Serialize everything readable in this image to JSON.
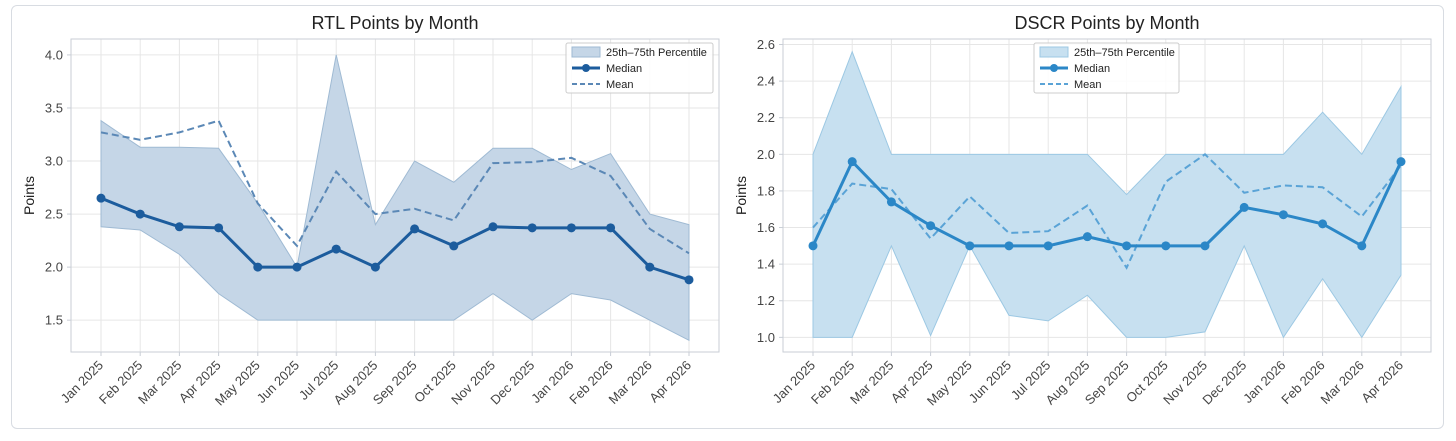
{
  "chart_data": [
    {
      "type": "line",
      "title": "RTL Points by Month",
      "xlabel": "",
      "ylabel": "Points",
      "ylim": [
        1.2,
        4.15
      ],
      "yticks": [
        1.5,
        2.0,
        2.5,
        3.0,
        3.5,
        4.0
      ],
      "ytick_labels": [
        "1.5",
        "2.0",
        "2.5",
        "3.0",
        "3.5",
        "4.0"
      ],
      "grid": true,
      "legend_position": "top-right",
      "categories": [
        "Jan 2025",
        "Feb 2025",
        "Mar 2025",
        "Apr 2025",
        "May 2025",
        "Jun 2025",
        "Jul 2025",
        "Aug 2025",
        "Sep 2025",
        "Oct 2025",
        "Nov 2025",
        "Dec 2025",
        "Jan 2026",
        "Feb 2026",
        "Mar 2026",
        "Apr 2026"
      ],
      "band": {
        "name": "25th–75th Percentile",
        "lower": [
          2.38,
          2.35,
          2.12,
          1.75,
          1.5,
          1.5,
          1.5,
          1.5,
          1.5,
          1.5,
          1.75,
          1.5,
          1.75,
          1.69,
          1.5,
          1.31
        ],
        "upper": [
          3.38,
          3.13,
          3.13,
          3.12,
          2.6,
          2.0,
          4.0,
          2.4,
          3.0,
          2.8,
          3.12,
          3.12,
          2.92,
          3.07,
          2.5,
          2.4
        ]
      },
      "series": [
        {
          "name": "Median",
          "style": "solid-markers",
          "values": [
            2.65,
            2.5,
            2.38,
            2.37,
            2.0,
            2.0,
            2.17,
            2.0,
            2.36,
            2.2,
            2.38,
            2.37,
            2.37,
            2.37,
            2.0,
            1.88
          ]
        },
        {
          "name": "Mean",
          "style": "dashed",
          "values": [
            3.27,
            3.2,
            3.27,
            3.38,
            2.6,
            2.2,
            2.9,
            2.5,
            2.55,
            2.44,
            2.98,
            2.99,
            3.03,
            2.86,
            2.36,
            2.13
          ]
        }
      ],
      "colors": {
        "band_fill": "#c5d6e7",
        "band_edge": "#9fbad3",
        "median": "#1c5c9d",
        "mean": "#5b88b6"
      }
    },
    {
      "type": "line",
      "title": "DSCR Points by Month",
      "xlabel": "",
      "ylabel": "Points",
      "ylim": [
        0.92,
        2.63
      ],
      "yticks": [
        1.0,
        1.2,
        1.4,
        1.6,
        1.8,
        2.0,
        2.2,
        2.4,
        2.6
      ],
      "ytick_labels": [
        "1.0",
        "1.2",
        "1.4",
        "1.6",
        "1.8",
        "2.0",
        "2.2",
        "2.4",
        "2.6"
      ],
      "grid": true,
      "legend_position": "top-center",
      "categories": [
        "Jan 2025",
        "Feb 2025",
        "Mar 2025",
        "Apr 2025",
        "May 2025",
        "Jun 2025",
        "Jul 2025",
        "Aug 2025",
        "Sep 2025",
        "Oct 2025",
        "Nov 2025",
        "Dec 2025",
        "Jan 2026",
        "Feb 2026",
        "Mar 2026",
        "Apr 2026"
      ],
      "band": {
        "name": "25th–75th Percentile",
        "lower": [
          1.0,
          1.0,
          1.5,
          1.01,
          1.5,
          1.12,
          1.09,
          1.23,
          1.0,
          1.0,
          1.03,
          1.5,
          1.0,
          1.32,
          1.0,
          1.34
        ],
        "upper": [
          2.0,
          2.56,
          2.0,
          2.0,
          2.0,
          2.0,
          2.0,
          2.0,
          1.78,
          2.0,
          2.0,
          2.0,
          2.0,
          2.23,
          2.0,
          2.37
        ]
      },
      "series": [
        {
          "name": "Median",
          "style": "solid-markers",
          "values": [
            1.5,
            1.96,
            1.74,
            1.61,
            1.5,
            1.5,
            1.5,
            1.55,
            1.5,
            1.5,
            1.5,
            1.71,
            1.67,
            1.62,
            1.5,
            1.96
          ]
        },
        {
          "name": "Mean",
          "style": "dashed",
          "values": [
            1.6,
            1.84,
            1.81,
            1.54,
            1.77,
            1.57,
            1.58,
            1.72,
            1.38,
            1.85,
            2.0,
            1.79,
            1.83,
            1.82,
            1.66,
            1.94
          ]
        }
      ],
      "colors": {
        "band_fill": "#c7e0f0",
        "band_edge": "#9cc8e3",
        "median": "#2b87c7",
        "mean": "#5aa3d6"
      }
    }
  ]
}
